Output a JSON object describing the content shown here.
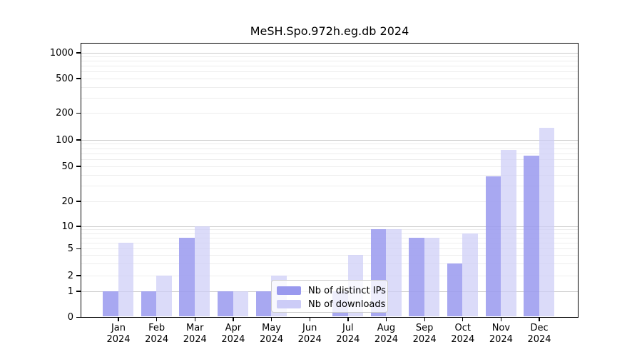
{
  "title": "MeSH.Spo.972h.eg.db 2024",
  "colors": {
    "bar_ips": "#9999ee",
    "bar_downloads": "#ccccf7",
    "grid_major": "#cccccc",
    "grid_minor": "#ededed",
    "axis": "#000000",
    "background": "#ffffff"
  },
  "chart_data": {
    "type": "bar",
    "title": "MeSH.Spo.972h.eg.db 2024",
    "categories": [
      "Jan 2024",
      "Feb 2024",
      "Mar 2024",
      "Apr 2024",
      "May 2024",
      "Jun 2024",
      "Jul 2024",
      "Aug 2024",
      "Sep 2024",
      "Oct 2024",
      "Nov 2024",
      "Dec 2024"
    ],
    "series": [
      {
        "name": "Nb of distinct IPs",
        "color": "#9999ee",
        "fill_alpha": 0.85,
        "values": [
          1,
          1,
          7,
          1,
          1,
          0,
          1,
          9,
          7,
          3,
          38,
          66
        ]
      },
      {
        "name": "Nb of downloads",
        "color": "#ccccf7",
        "fill_alpha": 0.7,
        "values": [
          6,
          2,
          10,
          1,
          2,
          0,
          4,
          9,
          7,
          8,
          77,
          137
        ]
      }
    ],
    "xlabel": "",
    "ylabel": "",
    "yscale": "symlog",
    "ytick_labels": [
      0,
      1,
      2,
      5,
      10,
      20,
      50,
      100,
      200,
      500,
      1000
    ],
    "ylim": [
      0,
      1300
    ],
    "grid": true,
    "legend_position": "lower center-left"
  }
}
